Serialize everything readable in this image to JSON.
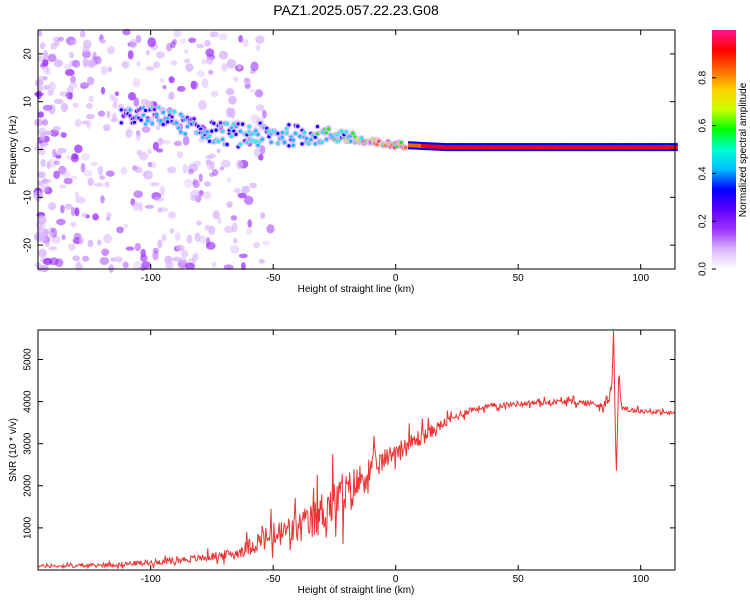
{
  "title": "PAZ1.2025.057.22.23.G08",
  "colors": {
    "snr_line": "#ee3333",
    "colormap": [
      "#ffffff",
      "#d9b3ff",
      "#9b30ff",
      "#5a00ff",
      "#0000ff",
      "#00bfff",
      "#00ffd0",
      "#00ff00",
      "#ccff00",
      "#ffd000",
      "#ff6600",
      "#ff0000",
      "#ff1493"
    ]
  },
  "chart_data": [
    {
      "type": "heatmap",
      "xlabel": "Height of straight line (km)",
      "ylabel": "Frequency (Hz)",
      "xlim": [
        -146,
        114
      ],
      "ylim": [
        -25,
        25
      ],
      "x_ticks": [
        -100,
        -50,
        0,
        50,
        100
      ],
      "y_ticks": [
        -20,
        -10,
        0,
        10,
        20
      ],
      "x_tick_labels": [
        "-100",
        "-50",
        "0",
        "50",
        "100"
      ],
      "y_tick_labels": [
        "-20",
        "-10",
        "0",
        "10",
        "20"
      ],
      "colorbar": {
        "label": "Normalized spectral amplitude",
        "range": [
          0,
          1
        ],
        "ticks": [
          0.0,
          0.2,
          0.4,
          0.6,
          0.8
        ],
        "tick_labels": [
          "0.0",
          "0.2",
          "0.4",
          "0.6",
          "0.8"
        ]
      },
      "ridge": {
        "x": [
          -112,
          -95,
          -80,
          -65,
          -50,
          -35,
          -22,
          -12,
          0,
          20,
          50,
          80,
          114
        ],
        "frequency": [
          7,
          7,
          4,
          3,
          3,
          3,
          3,
          1.5,
          1,
          0.5,
          0.5,
          0.5,
          0.5
        ],
        "spread": [
          1.5,
          2,
          2,
          2.5,
          2.5,
          2,
          1.5,
          0.8,
          0.6,
          0.5,
          0.5,
          0.5,
          0.5
        ],
        "amplitude": [
          0.35,
          0.45,
          0.45,
          0.45,
          0.5,
          0.5,
          0.55,
          0.9,
          0.85,
          0.9,
          0.92,
          0.93,
          0.93
        ]
      }
    },
    {
      "type": "line",
      "xlabel": "Height of straight line (km)",
      "ylabel": "SNR (10 * v/v)",
      "xlim": [
        -146,
        114
      ],
      "ylim": [
        0,
        5700
      ],
      "x_ticks": [
        -100,
        -50,
        0,
        50,
        100
      ],
      "y_ticks": [
        1000,
        2000,
        3000,
        4000,
        5000
      ],
      "x_tick_labels": [
        "-100",
        "-50",
        "0",
        "50",
        "100"
      ],
      "y_tick_labels": [
        "1000",
        "2000",
        "3000",
        "4000",
        "5000"
      ],
      "series": [
        {
          "x": [
            -146,
            -120,
            -100,
            -80,
            -65,
            -55,
            -45,
            -35,
            -28,
            -20,
            -15,
            -10,
            -5,
            0,
            5,
            10,
            15,
            20,
            25,
            30,
            40,
            50,
            60,
            70,
            80,
            85,
            88,
            89,
            90,
            91,
            92,
            95,
            100,
            105,
            114
          ],
          "y": [
            90,
            110,
            180,
            280,
            400,
            700,
            900,
            1100,
            1500,
            1800,
            2100,
            2400,
            2600,
            2850,
            2950,
            3150,
            3300,
            3500,
            3650,
            3800,
            3900,
            3950,
            3980,
            4000,
            3960,
            3900,
            4200,
            5600,
            2200,
            4700,
            3900,
            3800,
            3780,
            3760,
            3720
          ],
          "noise": [
            50,
            60,
            80,
            110,
            150,
            350,
            450,
            550,
            700,
            650,
            550,
            450,
            320,
            250,
            300,
            280,
            200,
            150,
            120,
            100,
            80,
            80,
            80,
            80,
            90,
            120,
            200,
            200,
            200,
            200,
            120,
            80,
            70,
            70,
            70
          ]
        }
      ]
    }
  ]
}
